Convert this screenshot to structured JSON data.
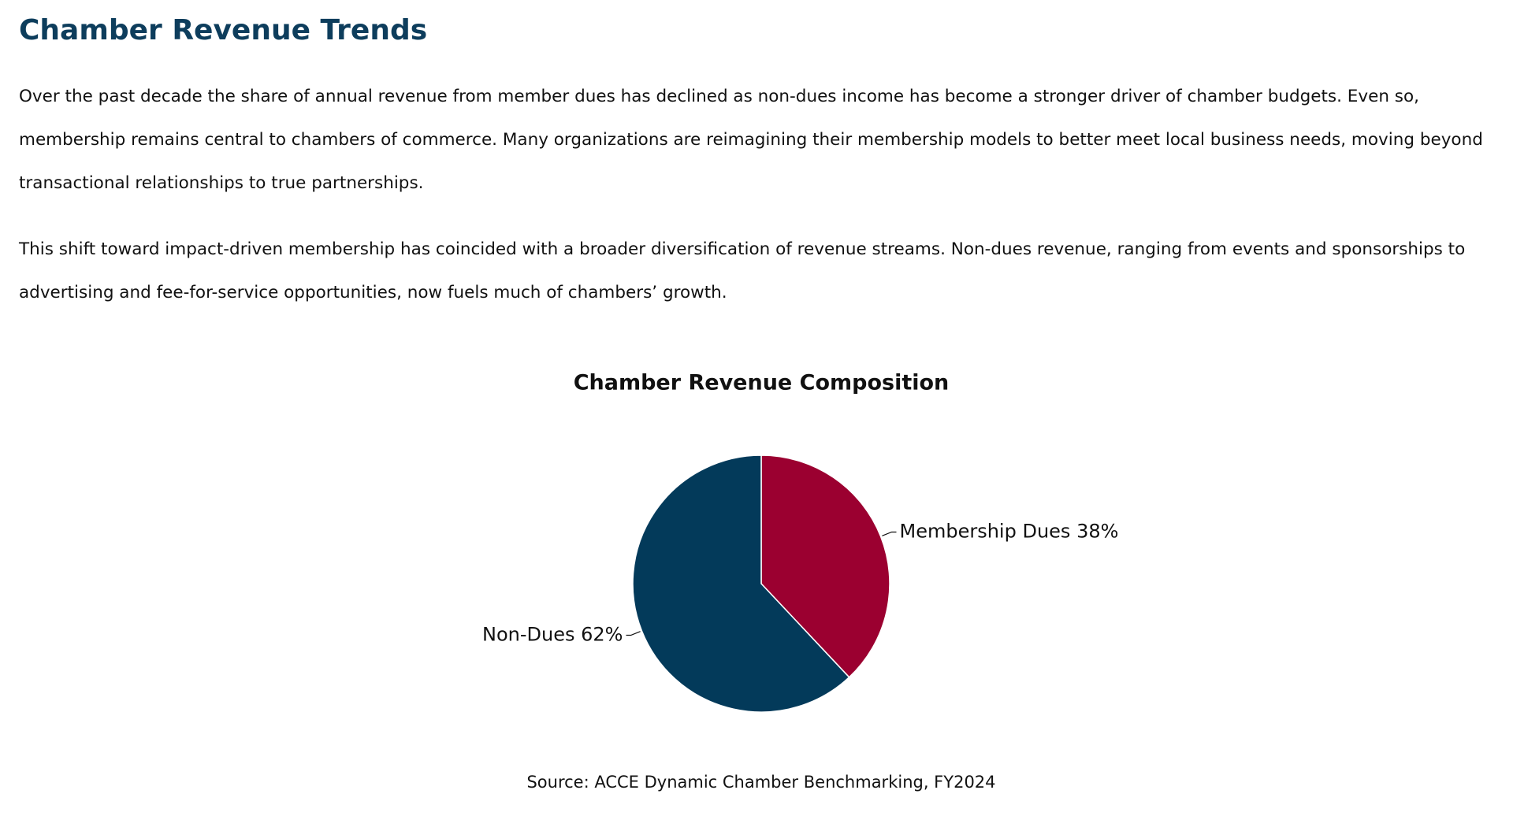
{
  "header": {
    "title": "Chamber Revenue Trends"
  },
  "paragraphs": [
    "Over the past decade the share of annual revenue from member dues has declined as non-dues income has become a stronger driver of chamber budgets. Even so, membership remains central to chambers of commerce. Many organizations are reimagining their membership models to better meet local business needs, moving beyond transactional relationships to true partnerships.",
    "This shift toward impact-driven membership has coincided with a broader diversification of revenue streams. Non-dues revenue, ranging from events and sponsorships to advertising and fee-for-service opportunities, now fuels much of chambers’ growth."
  ],
  "chart_data": {
    "type": "pie",
    "title": "Chamber Revenue Composition",
    "categories": [
      "Membership Dues",
      "Non-Dues"
    ],
    "values": [
      38,
      62
    ],
    "value_labels": [
      "38%",
      "62%"
    ],
    "colors": [
      "#9b0030",
      "#033a5a"
    ],
    "source": "Source: ACCE Dynamic Chamber Benchmarking, FY2024"
  }
}
